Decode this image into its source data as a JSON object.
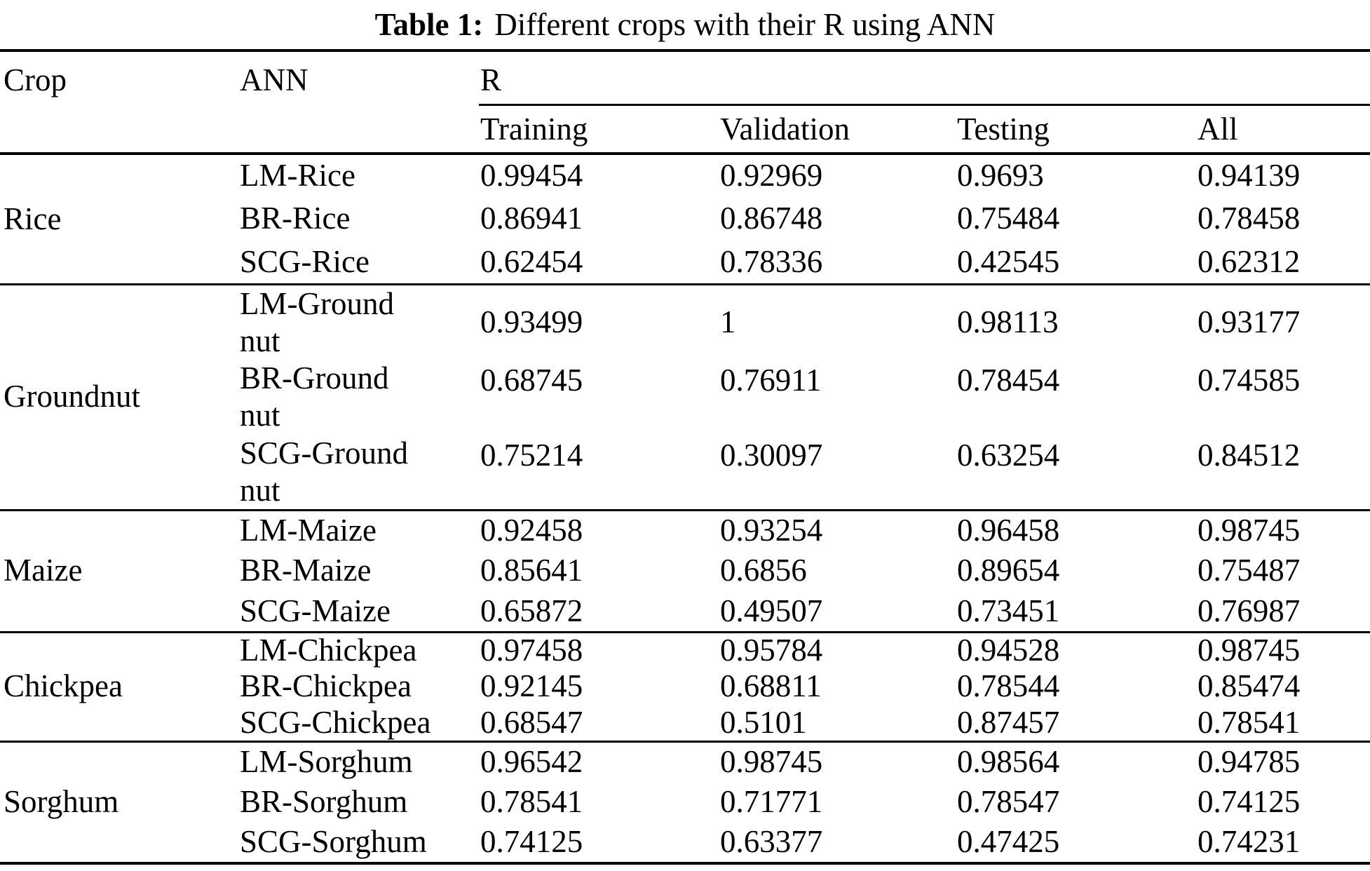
{
  "title": {
    "label": "Table 1:",
    "text": "Different crops with their R using ANN"
  },
  "header": {
    "crop": "Crop",
    "ann": "ANN",
    "r": "R",
    "subcolumns": [
      "Training",
      "Validation",
      "Testing",
      "All"
    ]
  },
  "groups": [
    {
      "crop": "Rice",
      "rows": [
        {
          "ann_lines": [
            "LM-Rice"
          ],
          "values": [
            "0.99454",
            "0.92969",
            "0.9693",
            "0.94139"
          ]
        },
        {
          "ann_lines": [
            "BR-Rice"
          ],
          "values": [
            "0.86941",
            "0.86748",
            "0.75484",
            "0.78458"
          ]
        },
        {
          "ann_lines": [
            "SCG-Rice"
          ],
          "values": [
            "0.62454",
            "0.78336",
            "0.42545",
            "0.62312"
          ]
        }
      ]
    },
    {
      "crop": "Groundnut",
      "rows": [
        {
          "ann_lines": [
            "LM-Ground",
            "nut"
          ],
          "values": [
            "0.93499",
            "1",
            "0.98113",
            "0.93177"
          ],
          "value_align": "middle"
        },
        {
          "ann_lines": [
            "BR-Ground",
            "nut"
          ],
          "values": [
            "0.68745",
            "0.76911",
            "0.78454",
            "0.74585"
          ],
          "value_align": "top"
        },
        {
          "ann_lines": [
            "SCG-Ground",
            "nut"
          ],
          "values": [
            "0.75214",
            "0.30097",
            "0.63254",
            "0.84512"
          ],
          "value_align": "top"
        }
      ]
    },
    {
      "crop": "Maize",
      "rows": [
        {
          "ann_lines": [
            "LM-Maize"
          ],
          "values": [
            "0.92458",
            "0.93254",
            "0.96458",
            "0.98745"
          ]
        },
        {
          "ann_lines": [
            "BR-Maize"
          ],
          "values": [
            "0.85641",
            "0.6856",
            "0.89654",
            "0.75487"
          ]
        },
        {
          "ann_lines": [
            "SCG-Maize"
          ],
          "values": [
            "0.65872",
            "0.49507",
            "0.73451",
            "0.76987"
          ]
        }
      ]
    },
    {
      "crop": "Chickpea",
      "rows": [
        {
          "ann_lines": [
            "LM-Chickpea"
          ],
          "values": [
            "0.97458",
            "0.95784",
            "0.94528",
            "0.98745"
          ]
        },
        {
          "ann_lines": [
            "BR-Chickpea"
          ],
          "values": [
            "0.92145",
            "0.68811",
            "0.78544",
            "0.85474"
          ]
        },
        {
          "ann_lines": [
            "SCG-Chickpea"
          ],
          "values": [
            "0.68547",
            "0.5101",
            "0.87457",
            "0.78541"
          ]
        }
      ]
    },
    {
      "crop": "Sorghum",
      "rows": [
        {
          "ann_lines": [
            "LM-Sorghum"
          ],
          "values": [
            "0.96542",
            "0.98745",
            "0.98564",
            "0.94785"
          ]
        },
        {
          "ann_lines": [
            "BR-Sorghum"
          ],
          "values": [
            "0.78541",
            "0.71771",
            "0.78547",
            "0.74125"
          ]
        },
        {
          "ann_lines": [
            "SCG-Sorghum"
          ],
          "values": [
            "0.74125",
            "0.63377",
            "0.47425",
            "0.74231"
          ]
        }
      ]
    }
  ],
  "colors": {
    "background": "#ffffff",
    "text": "#000000",
    "rule": "#000000"
  }
}
